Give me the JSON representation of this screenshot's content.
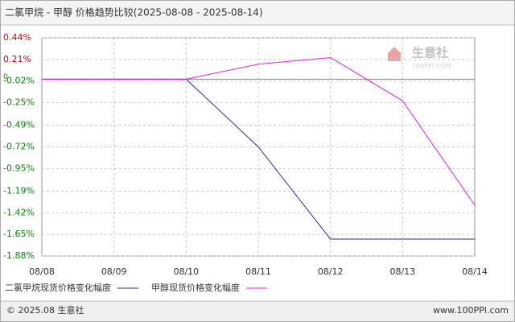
{
  "chart_data": {
    "type": "line",
    "title": "二氯甲烷 - 甲醇 价格趋势比较(2025-08-08 - 2025-08-14)",
    "x": [
      "08/08",
      "08/09",
      "08/10",
      "08/11",
      "08/12",
      "08/13",
      "08/14"
    ],
    "series": [
      {
        "name": "二氯甲烷现货价格变化幅度",
        "color": "#2b2b9c",
        "values": [
          0,
          0,
          0,
          -0.72,
          -1.7,
          -1.7,
          -1.7
        ]
      },
      {
        "name": "甲醇现货价格变化幅度",
        "color": "#e020e0",
        "values": [
          0,
          0,
          0,
          0.16,
          0.23,
          -0.23,
          -1.34
        ]
      }
    ],
    "ylim": [
      -1.88,
      0.44
    ],
    "yticks": [
      {
        "value": 0.44,
        "label": "0.44%"
      },
      {
        "value": 0.21,
        "label": "0.21%"
      },
      {
        "value": -0.02,
        "label": "-0.02%"
      },
      {
        "value": -0.25,
        "label": "-0.25%"
      },
      {
        "value": -0.49,
        "label": "-0.49%"
      },
      {
        "value": -0.72,
        "label": "-0.72%"
      },
      {
        "value": -0.95,
        "label": "-0.95%"
      },
      {
        "value": -1.19,
        "label": "-1.19%"
      },
      {
        "value": -1.42,
        "label": "-1.42%"
      },
      {
        "value": -1.65,
        "label": "-1.65%"
      },
      {
        "value": -1.88,
        "label": "-1.88%"
      }
    ],
    "zero_label": "0",
    "grid": true,
    "watermark": {
      "name": "生意社",
      "site": "100PPI.COM"
    },
    "footer": {
      "left": "© 2025.08 生意社",
      "right": "www.100PPI.com"
    }
  }
}
